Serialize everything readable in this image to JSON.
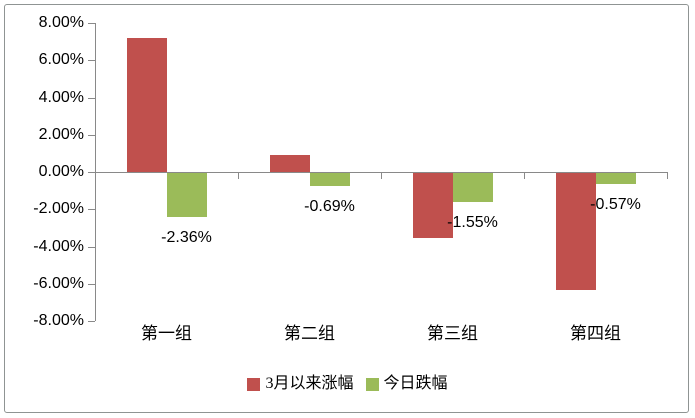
{
  "chart_data": {
    "type": "bar",
    "title": "",
    "categories": [
      "第一组",
      "第二组",
      "第三组",
      "第四组"
    ],
    "series": [
      {
        "name": "3月以来涨幅",
        "color": "#C0504D",
        "values": [
          7.2,
          0.9,
          -3.5,
          -6.3
        ],
        "data_labels": null
      },
      {
        "name": "今日跌幅",
        "color": "#9BBB59",
        "values": [
          -2.36,
          -0.69,
          -1.55,
          -0.57
        ],
        "data_labels": [
          "-2.36%",
          "-0.69%",
          "-1.55%",
          "-0.57%"
        ]
      }
    ],
    "ylim": [
      -8,
      8
    ],
    "ytick_step": 2,
    "ytick_labels": [
      "8.00%",
      "6.00%",
      "4.00%",
      "2.00%",
      "0.00%",
      "-2.00%",
      "-4.00%",
      "-6.00%",
      "-8.00%"
    ],
    "xlabel": "",
    "ylabel": "",
    "grid": false,
    "legend_position": "bottom-center",
    "colors": {
      "axis": "#898989",
      "text": "#000000",
      "background": "#FFFFFF",
      "frame_border": "#8F9493"
    }
  }
}
